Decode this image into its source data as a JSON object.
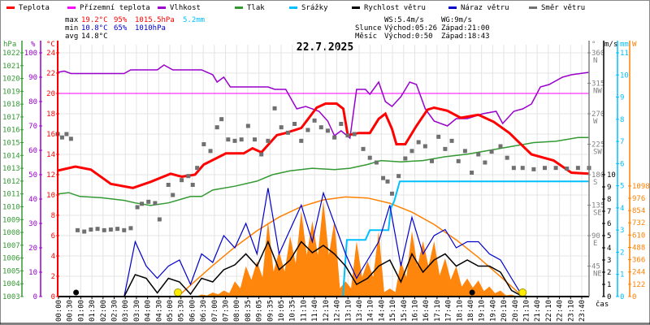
{
  "legend": [
    {
      "label": "Teplota",
      "color": "#ff0000"
    },
    {
      "label": "Přízemní teplota",
      "color": "#ff00ff"
    },
    {
      "label": "Vlhkost",
      "color": "#9900cc"
    },
    {
      "label": "Tlak",
      "color": "#339933"
    },
    {
      "label": "Srážky",
      "color": "#00bfff"
    },
    {
      "label": "Rychlost větru",
      "color": "#000000"
    },
    {
      "label": "Náraz větru",
      "color": "#0000cc"
    },
    {
      "label": "Směr větru",
      "color": "#707070"
    }
  ],
  "stats": {
    "max": {
      "label": "max",
      "temp": "19.2°C",
      "hum": "95%",
      "press": "1015.5hPa",
      "rain": "5.2mm"
    },
    "min": {
      "label": "min",
      "temp": "10.8°C",
      "hum": "65%",
      "press": "1010hPa"
    },
    "avg": {
      "label": "avg",
      "temp": "14.8°C"
    }
  },
  "wind": {
    "ws": "WS:5.4m/s",
    "wg": "WG:9m/s"
  },
  "sun": {
    "label": "Slunce",
    "rise": "Východ:05:26",
    "set": "Západ:21:00"
  },
  "moon": {
    "label": "Měsíc",
    "rise": "Východ:0:50",
    "set": "Západ:18:43"
  },
  "title": "22.7.2025",
  "colors": {
    "temp": "#ff0000",
    "feels": "#ff00ff",
    "hum": "#9900cc",
    "press": "#339933",
    "rain": "#00bfff",
    "wind": "#000000",
    "gust": "#0000cc",
    "dir": "#707070",
    "solar": "#ff8000",
    "sun_marker": "#ffee00",
    "moon_marker": "#000000"
  },
  "chart_data": {
    "type": "line",
    "title": "22.7.2025",
    "xlabel": "čas",
    "x_ticks": [
      "00:00",
      "00:30",
      "01:00",
      "01:30",
      "02:00",
      "02:30",
      "03:00",
      "03:30",
      "04:00",
      "04:30",
      "05:00",
      "05:30",
      "06:00",
      "06:30",
      "07:00",
      "07:30",
      "08:00",
      "08:35",
      "09:05",
      "09:35",
      "10:05",
      "10:35",
      "11:10",
      "11:40",
      "12:10",
      "12:40",
      "13:10",
      "13:40",
      "14:10",
      "14:40",
      "15:10",
      "15:40",
      "16:10",
      "16:40",
      "17:10",
      "17:40",
      "18:10",
      "18:40",
      "19:10",
      "19:40",
      "20:10",
      "20:40",
      "21:10",
      "21:40",
      "22:10",
      "22:40",
      "23:10",
      "23:40"
    ],
    "x_range_hours": [
      0,
      24
    ],
    "axes": {
      "hpa": {
        "unit": "hPa",
        "range": [
          1003,
          1022
        ],
        "ticks": [
          1003,
          1004,
          1005,
          1006,
          1007,
          1008,
          1009,
          1010,
          1011,
          1012,
          1013,
          1014,
          1015,
          1016,
          1017,
          1018,
          1019,
          1020,
          1021,
          1022
        ]
      },
      "pct": {
        "unit": "%",
        "range": [
          0,
          100
        ],
        "ticks": [
          0,
          10,
          20,
          30,
          40,
          50,
          60,
          70,
          80,
          90,
          100
        ]
      },
      "temp": {
        "unit": "°C",
        "range": [
          0,
          24
        ],
        "ticks": [
          0,
          2,
          4,
          6,
          8,
          10,
          12,
          14,
          16,
          18,
          20,
          22,
          24
        ]
      },
      "dir": {
        "unit": "°",
        "range": [
          0,
          360
        ],
        "ticks": [
          {
            "v": 45,
            "l": "NE"
          },
          {
            "v": 90,
            "l": "E"
          },
          {
            "v": 135,
            "l": "SE"
          },
          {
            "v": 180,
            "l": "S"
          },
          {
            "v": 225,
            "l": "SW"
          },
          {
            "v": 270,
            "l": "W"
          },
          {
            "v": 315,
            "l": "NW"
          },
          {
            "v": 360,
            "l": "N"
          }
        ]
      },
      "ms": {
        "unit": "m/s",
        "range": [
          0,
          20
        ],
        "ticks": [
          0,
          1,
          2,
          3,
          4,
          5,
          6,
          7,
          8,
          9,
          10
        ]
      },
      "mm": {
        "unit": "mm",
        "range": [
          0,
          11
        ],
        "ticks": [
          0,
          1,
          2,
          3,
          4,
          5,
          6,
          7,
          8,
          9,
          10,
          11
        ]
      },
      "w": {
        "unit": "W",
        "range": [
          0,
          2420
        ],
        "ticks": [
          0,
          122,
          244,
          366,
          488,
          610,
          732,
          854,
          976,
          1098
        ]
      }
    },
    "feels_like_temp": 20,
    "series": {
      "temperature": [
        [
          0,
          12.4
        ],
        [
          0.8,
          12.8
        ],
        [
          1.5,
          12.5
        ],
        [
          2.4,
          11.1
        ],
        [
          3.4,
          10.7
        ],
        [
          4.2,
          11.3
        ],
        [
          5.1,
          12.1
        ],
        [
          5.6,
          11.8
        ],
        [
          6.2,
          12
        ],
        [
          6.6,
          13
        ],
        [
          7.6,
          14.1
        ],
        [
          8.4,
          14.1
        ],
        [
          8.8,
          14.6
        ],
        [
          9.2,
          14.2
        ],
        [
          9.9,
          15.9
        ],
        [
          10.3,
          16.1
        ],
        [
          11,
          16.6
        ],
        [
          11.7,
          18.6
        ],
        [
          12.1,
          19
        ],
        [
          12.6,
          19
        ],
        [
          12.9,
          18.5
        ],
        [
          13.1,
          15.9
        ],
        [
          13.6,
          16.1
        ],
        [
          14.1,
          16.1
        ],
        [
          14.5,
          17.5
        ],
        [
          14.8,
          18
        ],
        [
          15.1,
          16.5
        ],
        [
          15.3,
          15
        ],
        [
          15.7,
          15
        ],
        [
          16.2,
          16.8
        ],
        [
          16.7,
          18.4
        ],
        [
          17,
          18.6
        ],
        [
          17.6,
          18.3
        ],
        [
          18.2,
          17.6
        ],
        [
          19,
          17.9
        ],
        [
          19.7,
          17.2
        ],
        [
          20.4,
          16.1
        ],
        [
          21.4,
          14
        ],
        [
          22.4,
          13.4
        ],
        [
          23.2,
          12.2
        ],
        [
          24,
          12.1
        ]
      ],
      "humidity": [
        [
          0,
          92
        ],
        [
          0.3,
          92.5
        ],
        [
          0.6,
          91.5
        ],
        [
          3,
          91.5
        ],
        [
          3.3,
          93
        ],
        [
          4.5,
          93
        ],
        [
          4.8,
          95
        ],
        [
          5.2,
          93
        ],
        [
          6.5,
          93
        ],
        [
          7,
          91
        ],
        [
          7.2,
          88
        ],
        [
          7.5,
          90
        ],
        [
          7.8,
          86
        ],
        [
          9.5,
          86
        ],
        [
          9.8,
          85
        ],
        [
          10.3,
          85
        ],
        [
          10.8,
          77
        ],
        [
          11.2,
          78
        ],
        [
          11.8,
          76
        ],
        [
          12.2,
          72
        ],
        [
          12.5,
          66
        ],
        [
          12.8,
          68
        ],
        [
          13.2,
          65
        ],
        [
          13.5,
          85
        ],
        [
          13.9,
          85
        ],
        [
          14.1,
          83
        ],
        [
          14.5,
          88
        ],
        [
          14.8,
          80
        ],
        [
          15.1,
          78
        ],
        [
          15.5,
          82
        ],
        [
          15.9,
          88
        ],
        [
          16.2,
          87
        ],
        [
          16.6,
          77
        ],
        [
          17,
          72
        ],
        [
          17.6,
          70
        ],
        [
          18,
          73
        ],
        [
          18.5,
          73
        ],
        [
          19.2,
          75
        ],
        [
          19.8,
          76
        ],
        [
          20.1,
          71
        ],
        [
          20.6,
          76
        ],
        [
          21,
          77
        ],
        [
          21.4,
          79
        ],
        [
          21.8,
          86
        ],
        [
          22.2,
          87
        ],
        [
          22.8,
          90
        ],
        [
          23.2,
          91
        ],
        [
          24,
          92
        ]
      ],
      "pressure": [
        [
          0,
          1011
        ],
        [
          0.5,
          1011.1
        ],
        [
          1,
          1010.8
        ],
        [
          2,
          1010.7
        ],
        [
          3,
          1010.5
        ],
        [
          3.5,
          1010.3
        ],
        [
          4.2,
          1010.1
        ],
        [
          5,
          1010.3
        ],
        [
          5.6,
          1010.6
        ],
        [
          6,
          1010.8
        ],
        [
          6.5,
          1010.8
        ],
        [
          7,
          1011.3
        ],
        [
          8,
          1011.6
        ],
        [
          9,
          1012
        ],
        [
          9.7,
          1012.5
        ],
        [
          10.5,
          1012.8
        ],
        [
          11.5,
          1013
        ],
        [
          12.5,
          1012.9
        ],
        [
          13.2,
          1013
        ],
        [
          14,
          1013.3
        ],
        [
          14.6,
          1013.6
        ],
        [
          15.5,
          1013.5
        ],
        [
          16.5,
          1013.6
        ],
        [
          17.5,
          1013.9
        ],
        [
          18.5,
          1014.1
        ],
        [
          19.5,
          1014.4
        ],
        [
          20.5,
          1014.7
        ],
        [
          21.5,
          1015
        ],
        [
          22.5,
          1015.1
        ],
        [
          23.5,
          1015.4
        ],
        [
          24,
          1015.4
        ]
      ],
      "rain_cumulative_mm": [
        [
          0,
          0
        ],
        [
          12.88,
          0
        ],
        [
          13.06,
          2.56
        ],
        [
          13.9,
          2.56
        ],
        [
          14.1,
          3.0
        ],
        [
          14.94,
          3.0
        ],
        [
          15.05,
          4.0
        ],
        [
          15.2,
          4.3
        ],
        [
          15.45,
          5.2
        ],
        [
          24,
          5.2
        ]
      ],
      "wind_direction_deg": [
        [
          0,
          240
        ],
        [
          0.2,
          235
        ],
        [
          0.4,
          240
        ],
        [
          0.6,
          233
        ],
        [
          0.9,
          98
        ],
        [
          1.2,
          96
        ],
        [
          1.5,
          99
        ],
        [
          1.8,
          100
        ],
        [
          2.1,
          98
        ],
        [
          2.4,
          99
        ],
        [
          2.7,
          100
        ],
        [
          3.0,
          98
        ],
        [
          3.3,
          101
        ],
        [
          3.6,
          132
        ],
        [
          3.8,
          137
        ],
        [
          4.1,
          140
        ],
        [
          4.4,
          138
        ],
        [
          4.6,
          114
        ],
        [
          5.0,
          165
        ],
        [
          5.2,
          150
        ],
        [
          5.6,
          172
        ],
        [
          5.9,
          178
        ],
        [
          6.1,
          165
        ],
        [
          6.3,
          190
        ],
        [
          6.6,
          225
        ],
        [
          6.9,
          215
        ],
        [
          7.2,
          250
        ],
        [
          7.4,
          262
        ],
        [
          7.7,
          232
        ],
        [
          8.0,
          230
        ],
        [
          8.3,
          232
        ],
        [
          8.6,
          252
        ],
        [
          8.9,
          232
        ],
        [
          9.2,
          210
        ],
        [
          9.5,
          230
        ],
        [
          9.8,
          278
        ],
        [
          10.1,
          250
        ],
        [
          10.4,
          242
        ],
        [
          10.7,
          255
        ],
        [
          11.0,
          230
        ],
        [
          11.3,
          246
        ],
        [
          11.6,
          260
        ],
        [
          11.9,
          250
        ],
        [
          12.2,
          245
        ],
        [
          12.5,
          235
        ],
        [
          12.8,
          255
        ],
        [
          13.1,
          238
        ],
        [
          13.4,
          240
        ],
        [
          13.8,
          218
        ],
        [
          14.1,
          205
        ],
        [
          14.4,
          198
        ],
        [
          14.7,
          175
        ],
        [
          14.9,
          170
        ],
        [
          15.1,
          152
        ],
        [
          15.4,
          178
        ],
        [
          15.7,
          204
        ],
        [
          16.0,
          215
        ],
        [
          16.3,
          228
        ],
        [
          16.6,
          222
        ],
        [
          16.9,
          200
        ],
        [
          17.2,
          236
        ],
        [
          17.5,
          218
        ],
        [
          17.8,
          230
        ],
        [
          18.1,
          200
        ],
        [
          18.4,
          215
        ],
        [
          18.7,
          183
        ],
        [
          19.0,
          210
        ],
        [
          19.3,
          198
        ],
        [
          19.6,
          214
        ],
        [
          20.0,
          222
        ],
        [
          20.3,
          205
        ],
        [
          20.6,
          190
        ],
        [
          21.0,
          190
        ],
        [
          21.5,
          188
        ],
        [
          22,
          190
        ],
        [
          22.5,
          190
        ],
        [
          23,
          189
        ],
        [
          23.5,
          190
        ],
        [
          24,
          190
        ]
      ],
      "half_hour_step": 0.5,
      "wind_speed_ms": [
        0,
        0,
        0,
        0,
        0,
        0,
        0,
        1.8,
        1.5,
        0.3,
        1.5,
        1.2,
        0.2,
        1.5,
        1.2,
        2.2,
        2.6,
        3.5,
        2.5,
        4.5,
        2.2,
        3.0,
        4.5,
        3.6,
        4.2,
        3.5,
        2.5,
        1.0,
        1.5,
        2.5,
        3.0,
        1.2,
        3.5,
        2.0,
        3.0,
        3.5,
        2.5,
        3.0,
        2.5,
        2.5,
        2.0,
        0.5,
        0,
        0,
        0,
        0,
        0,
        0,
        0
      ],
      "wind_gust_ms": [
        0,
        0,
        0,
        0,
        0,
        0,
        0,
        4.5,
        2.5,
        1.5,
        2.5,
        3.0,
        1.0,
        3.5,
        2.8,
        5.0,
        4.0,
        6.0,
        3.5,
        8.9,
        3.5,
        5.5,
        7.5,
        4.5,
        8.5,
        6.0,
        3.5,
        1.5,
        3.0,
        4.5,
        7.5,
        2.5,
        6.5,
        3.5,
        5.0,
        5.5,
        4.0,
        4.5,
        4.5,
        3.5,
        3.0,
        1.5,
        0,
        0,
        0,
        0,
        0,
        0,
        0
      ],
      "solar_w": [
        0,
        0,
        0,
        0,
        0,
        0,
        0,
        0,
        0,
        0,
        0,
        0,
        0,
        20,
        40,
        60,
        150,
        300,
        350,
        750,
        450,
        600,
        850,
        750,
        950,
        750,
        150,
        550,
        350,
        650,
        80,
        350,
        650,
        550,
        550,
        380,
        300,
        180,
        160,
        100,
        60,
        20,
        0,
        0,
        0,
        0,
        0,
        0,
        0
      ],
      "solar_theoretical_w": [
        [
          5.43,
          0
        ],
        [
          6,
          114
        ],
        [
          7,
          308
        ],
        [
          8,
          491
        ],
        [
          9,
          653
        ],
        [
          10,
          789
        ],
        [
          11,
          893
        ],
        [
          12,
          960
        ],
        [
          13,
          989
        ],
        [
          14,
          978
        ],
        [
          15,
          927
        ],
        [
          16,
          838
        ],
        [
          17,
          716
        ],
        [
          18,
          563
        ],
        [
          19,
          389
        ],
        [
          20,
          198
        ],
        [
          21,
          0
        ]
      ]
    },
    "markers": {
      "sunrise_h": 5.43,
      "sunset_h": 21.0,
      "moonrise_h": 0.83,
      "moonset_h": 18.72
    }
  }
}
